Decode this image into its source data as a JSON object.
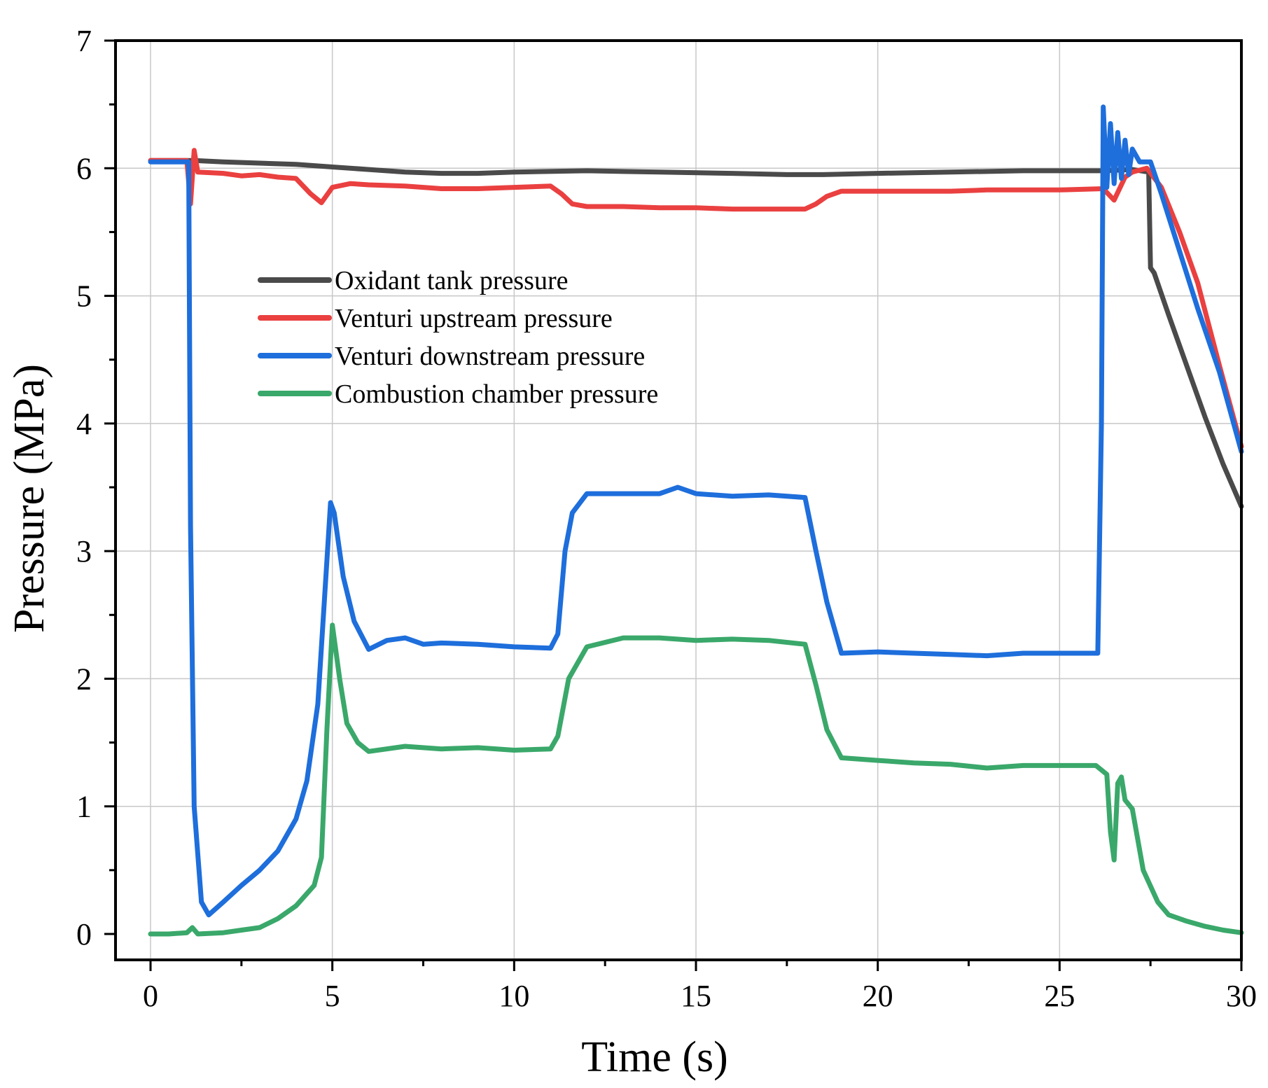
{
  "chart_data": {
    "type": "line",
    "title": "",
    "xlabel": "Time (s)",
    "ylabel": "Pressure (MPa)",
    "xlim": [
      0,
      30
    ],
    "ylim": [
      0,
      7
    ],
    "xticks": [
      "0",
      "5",
      "10",
      "15",
      "20",
      "25",
      "30"
    ],
    "yticks": [
      "0",
      "1",
      "2",
      "3",
      "4",
      "5",
      "6",
      "7"
    ],
    "grid": true,
    "legend_position": "upper-left inside",
    "series": [
      {
        "name": "Oxidant tank pressure",
        "color": "#4a4a4a",
        "points": [
          [
            0,
            6.06
          ],
          [
            1.2,
            6.06
          ],
          [
            2,
            6.05
          ],
          [
            3,
            6.04
          ],
          [
            4,
            6.03
          ],
          [
            5,
            6.01
          ],
          [
            6,
            5.99
          ],
          [
            7,
            5.97
          ],
          [
            8,
            5.96
          ],
          [
            9,
            5.96
          ],
          [
            10,
            5.97
          ],
          [
            12,
            5.98
          ],
          [
            14,
            5.97
          ],
          [
            16,
            5.96
          ],
          [
            17.5,
            5.95
          ],
          [
            18.5,
            5.95
          ],
          [
            20,
            5.96
          ],
          [
            22,
            5.97
          ],
          [
            24,
            5.98
          ],
          [
            25,
            5.98
          ],
          [
            26.2,
            5.98
          ],
          [
            27,
            5.99
          ],
          [
            27.45,
            5.97
          ],
          [
            27.5,
            5.22
          ],
          [
            27.6,
            5.18
          ],
          [
            28,
            4.85
          ],
          [
            28.5,
            4.45
          ],
          [
            29,
            4.05
          ],
          [
            29.5,
            3.68
          ],
          [
            30,
            3.35
          ]
        ]
      },
      {
        "name": "Venturi upstream pressure",
        "color": "#ea4040",
        "points": [
          [
            0,
            6.06
          ],
          [
            1,
            6.06
          ],
          [
            1.1,
            5.72
          ],
          [
            1.2,
            6.14
          ],
          [
            1.3,
            5.97
          ],
          [
            2,
            5.96
          ],
          [
            2.5,
            5.94
          ],
          [
            3,
            5.95
          ],
          [
            3.5,
            5.93
          ],
          [
            4,
            5.92
          ],
          [
            4.4,
            5.8
          ],
          [
            4.7,
            5.73
          ],
          [
            5,
            5.85
          ],
          [
            5.5,
            5.88
          ],
          [
            6,
            5.87
          ],
          [
            7,
            5.86
          ],
          [
            8,
            5.84
          ],
          [
            9,
            5.84
          ],
          [
            10,
            5.85
          ],
          [
            11,
            5.86
          ],
          [
            11.3,
            5.8
          ],
          [
            11.6,
            5.72
          ],
          [
            12,
            5.7
          ],
          [
            13,
            5.7
          ],
          [
            14,
            5.69
          ],
          [
            15,
            5.69
          ],
          [
            16,
            5.68
          ],
          [
            17,
            5.68
          ],
          [
            18,
            5.68
          ],
          [
            18.3,
            5.72
          ],
          [
            18.6,
            5.78
          ],
          [
            19,
            5.82
          ],
          [
            20,
            5.82
          ],
          [
            21,
            5.82
          ],
          [
            22,
            5.82
          ],
          [
            23,
            5.83
          ],
          [
            24,
            5.83
          ],
          [
            25,
            5.83
          ],
          [
            26.2,
            5.84
          ],
          [
            26.5,
            5.75
          ],
          [
            26.8,
            5.93
          ],
          [
            27,
            5.97
          ],
          [
            27.4,
            6.0
          ],
          [
            27.8,
            5.85
          ],
          [
            28.3,
            5.5
          ],
          [
            28.8,
            5.1
          ],
          [
            29.4,
            4.45
          ],
          [
            30,
            3.82
          ]
        ]
      },
      {
        "name": "Venturi downstream pressure",
        "color": "#1e6edc",
        "points": [
          [
            0,
            6.05
          ],
          [
            1.05,
            6.05
          ],
          [
            1.1,
            3.2
          ],
          [
            1.2,
            1.0
          ],
          [
            1.4,
            0.25
          ],
          [
            1.6,
            0.15
          ],
          [
            2,
            0.25
          ],
          [
            2.5,
            0.38
          ],
          [
            3,
            0.5
          ],
          [
            3.5,
            0.65
          ],
          [
            4,
            0.9
          ],
          [
            4.3,
            1.2
          ],
          [
            4.6,
            1.8
          ],
          [
            4.8,
            2.7
          ],
          [
            4.95,
            3.38
          ],
          [
            5.05,
            3.3
          ],
          [
            5.3,
            2.8
          ],
          [
            5.6,
            2.45
          ],
          [
            6,
            2.23
          ],
          [
            6.5,
            2.3
          ],
          [
            7,
            2.32
          ],
          [
            7.5,
            2.27
          ],
          [
            8,
            2.28
          ],
          [
            9,
            2.27
          ],
          [
            10,
            2.25
          ],
          [
            11,
            2.24
          ],
          [
            11.2,
            2.35
          ],
          [
            11.4,
            3.0
          ],
          [
            11.6,
            3.3
          ],
          [
            12,
            3.45
          ],
          [
            13,
            3.45
          ],
          [
            14,
            3.45
          ],
          [
            14.5,
            3.5
          ],
          [
            15,
            3.45
          ],
          [
            16,
            3.43
          ],
          [
            17,
            3.44
          ],
          [
            18,
            3.42
          ],
          [
            18.3,
            3.0
          ],
          [
            18.6,
            2.6
          ],
          [
            19,
            2.2
          ],
          [
            20,
            2.21
          ],
          [
            21,
            2.2
          ],
          [
            22,
            2.19
          ],
          [
            23,
            2.18
          ],
          [
            24,
            2.2
          ],
          [
            25,
            2.2
          ],
          [
            26.05,
            2.2
          ],
          [
            26.15,
            4.0
          ],
          [
            26.2,
            6.48
          ],
          [
            26.3,
            5.85
          ],
          [
            26.4,
            6.35
          ],
          [
            26.5,
            5.88
          ],
          [
            26.6,
            6.28
          ],
          [
            26.7,
            5.92
          ],
          [
            26.8,
            6.22
          ],
          [
            26.9,
            5.95
          ],
          [
            27.0,
            6.15
          ],
          [
            27.2,
            6.05
          ],
          [
            27.5,
            6.05
          ],
          [
            27.8,
            5.8
          ],
          [
            28.3,
            5.35
          ],
          [
            28.8,
            4.9
          ],
          [
            29.4,
            4.4
          ],
          [
            30,
            3.78
          ]
        ]
      },
      {
        "name": "Combustion chamber pressure",
        "color": "#3aa86a",
        "points": [
          [
            0,
            0.0
          ],
          [
            0.5,
            0.0
          ],
          [
            1,
            0.01
          ],
          [
            1.15,
            0.05
          ],
          [
            1.3,
            0.0
          ],
          [
            2,
            0.01
          ],
          [
            2.5,
            0.03
          ],
          [
            3,
            0.05
          ],
          [
            3.5,
            0.12
          ],
          [
            4,
            0.22
          ],
          [
            4.5,
            0.38
          ],
          [
            4.7,
            0.6
          ],
          [
            4.85,
            1.6
          ],
          [
            5.0,
            2.42
          ],
          [
            5.2,
            2.0
          ],
          [
            5.4,
            1.65
          ],
          [
            5.7,
            1.5
          ],
          [
            6,
            1.43
          ],
          [
            7,
            1.47
          ],
          [
            8,
            1.45
          ],
          [
            9,
            1.46
          ],
          [
            10,
            1.44
          ],
          [
            11,
            1.45
          ],
          [
            11.2,
            1.55
          ],
          [
            11.5,
            2.0
          ],
          [
            12,
            2.25
          ],
          [
            13,
            2.32
          ],
          [
            14,
            2.32
          ],
          [
            15,
            2.3
          ],
          [
            16,
            2.31
          ],
          [
            17,
            2.3
          ],
          [
            18,
            2.27
          ],
          [
            18.3,
            1.95
          ],
          [
            18.6,
            1.6
          ],
          [
            19,
            1.38
          ],
          [
            20,
            1.36
          ],
          [
            21,
            1.34
          ],
          [
            22,
            1.33
          ],
          [
            23,
            1.3
          ],
          [
            24,
            1.32
          ],
          [
            25,
            1.32
          ],
          [
            26.0,
            1.32
          ],
          [
            26.3,
            1.25
          ],
          [
            26.4,
            0.8
          ],
          [
            26.5,
            0.58
          ],
          [
            26.6,
            1.18
          ],
          [
            26.7,
            1.23
          ],
          [
            26.8,
            1.05
          ],
          [
            27,
            0.98
          ],
          [
            27.3,
            0.5
          ],
          [
            27.7,
            0.25
          ],
          [
            28,
            0.15
          ],
          [
            28.5,
            0.1
          ],
          [
            29,
            0.06
          ],
          [
            29.5,
            0.03
          ],
          [
            30,
            0.01
          ]
        ]
      }
    ]
  }
}
